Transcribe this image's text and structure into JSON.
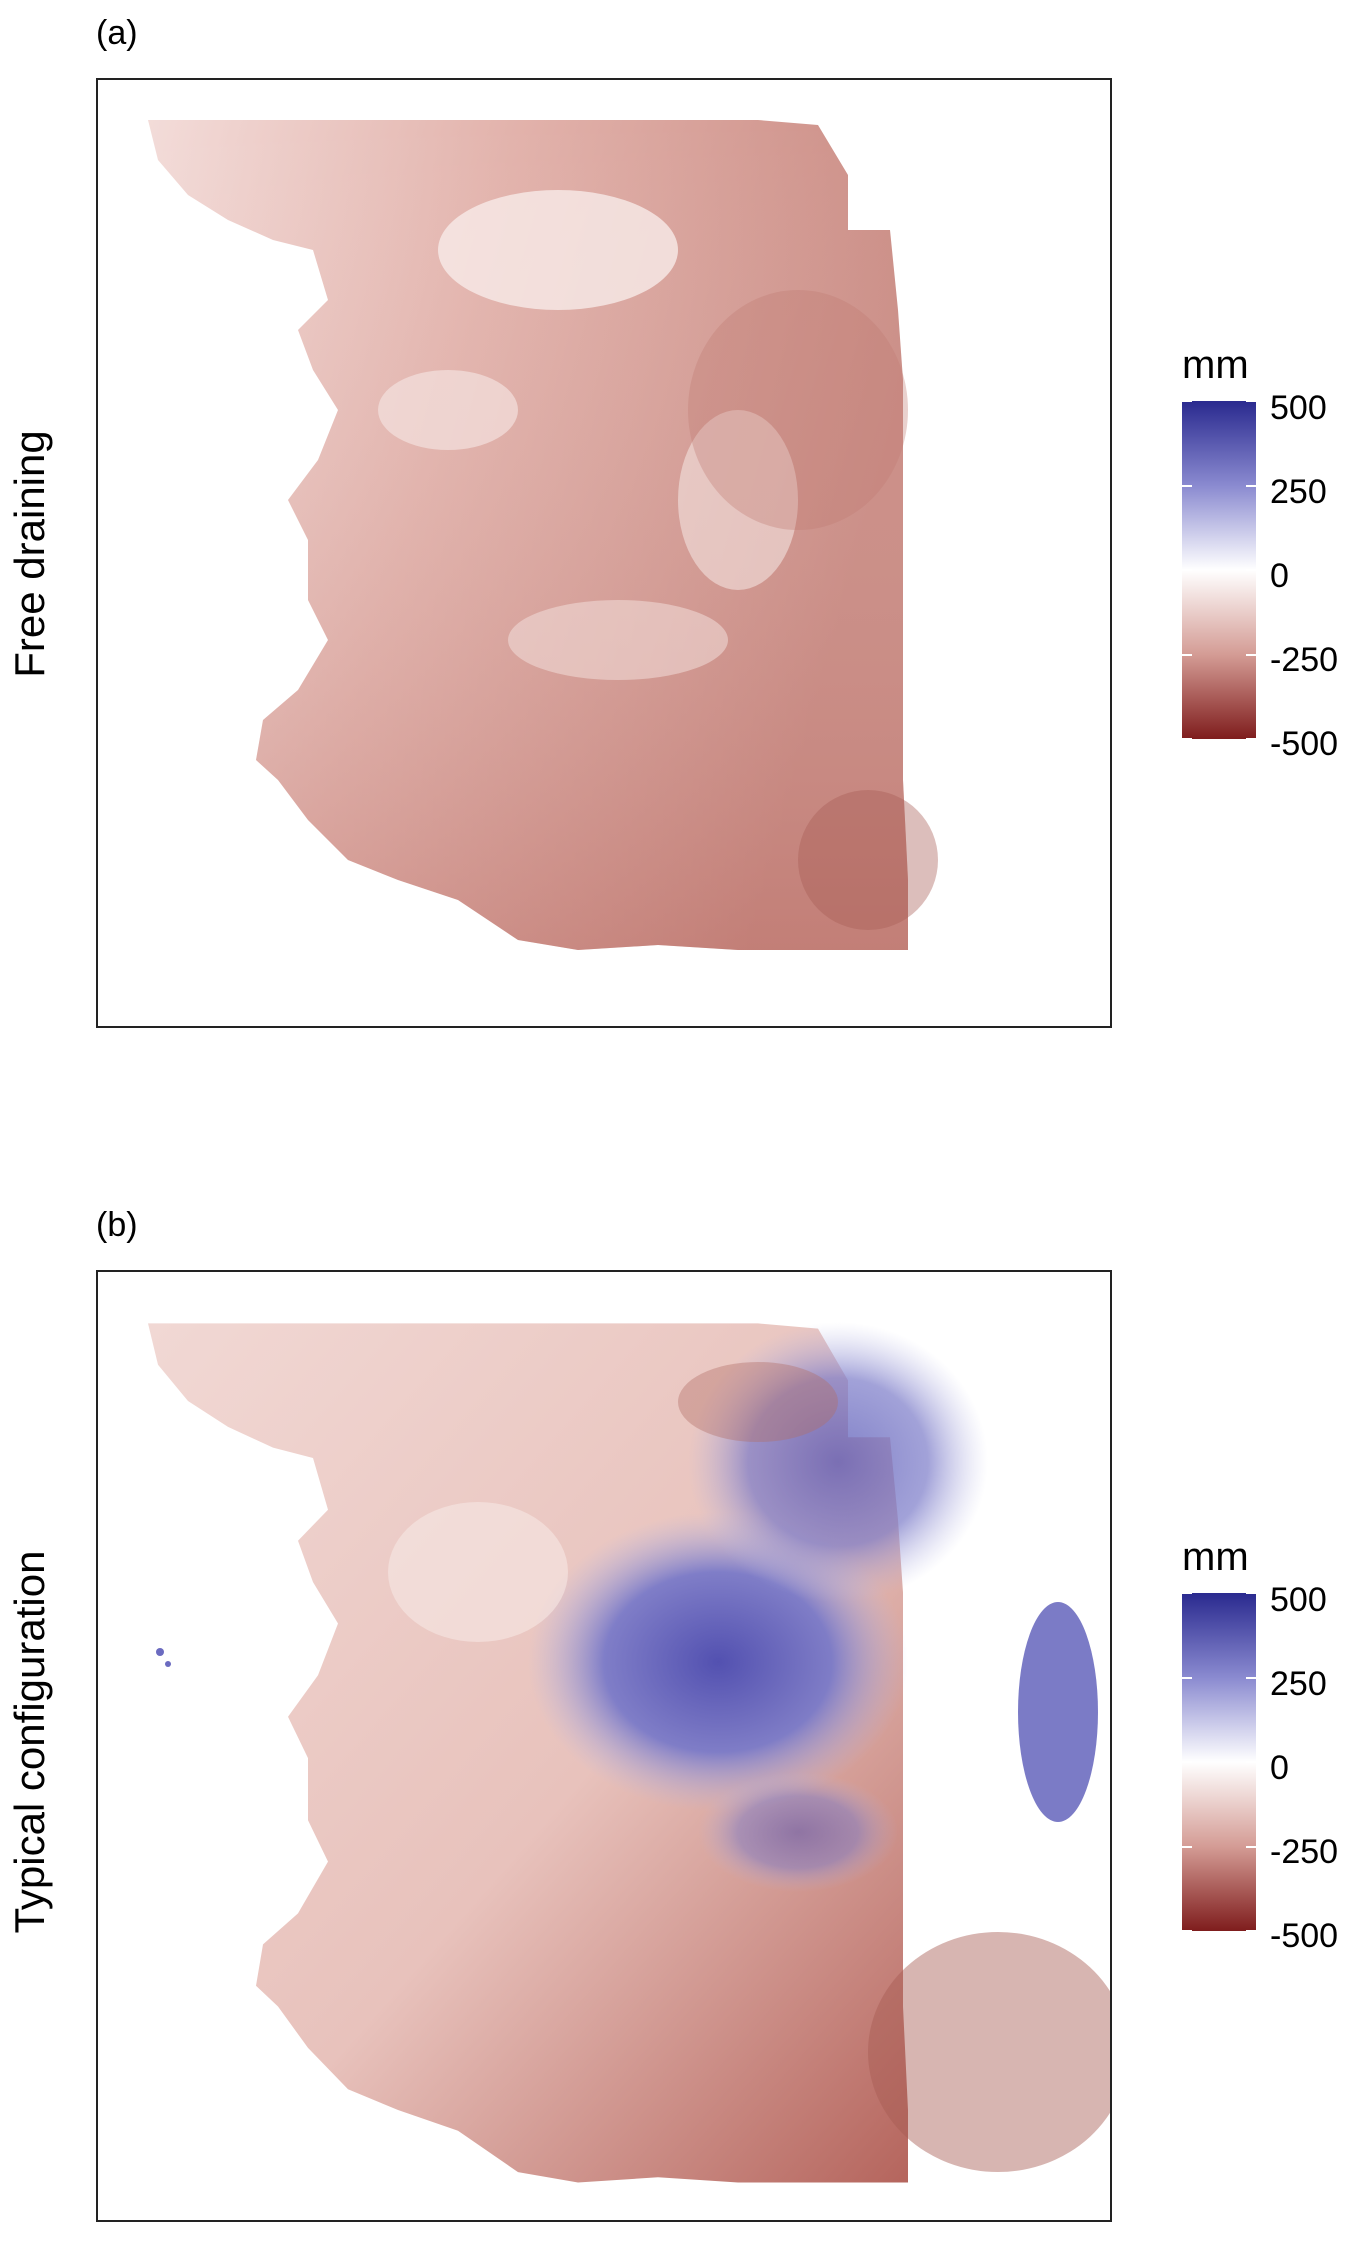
{
  "panels": [
    {
      "label": "(a)",
      "row_title": "Free draining",
      "legend": {
        "title": "mm",
        "ticks": [
          "500",
          "250",
          "0",
          "-250",
          "-500"
        ],
        "min": -500,
        "max": 500
      },
      "colors": {
        "negative": "#7f1d1d",
        "zero": "#ffffff",
        "positive": "#2a2a8f"
      }
    },
    {
      "label": "(b)",
      "row_title": "Typical configuration",
      "legend": {
        "title": "mm",
        "ticks": [
          "500",
          "250",
          "0",
          "-250",
          "-500"
        ],
        "min": -500,
        "max": 500
      },
      "colors": {
        "negative": "#7f1d1d",
        "zero": "#ffffff",
        "positive": "#2a2a8f"
      }
    }
  ]
}
